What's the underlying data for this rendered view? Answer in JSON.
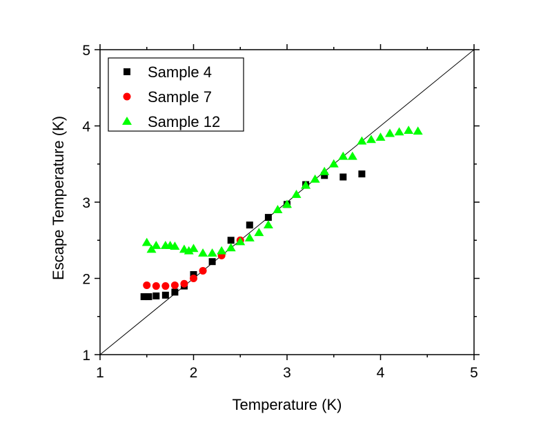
{
  "chart_data": {
    "type": "scatter",
    "title": "",
    "xlabel": "Temperature (K)",
    "ylabel": "Escape Temperature (K)",
    "xlim": [
      1,
      5
    ],
    "ylim": [
      1,
      5
    ],
    "xticks": [
      1,
      2,
      3,
      4,
      5
    ],
    "yticks": [
      1,
      2,
      3,
      4,
      5
    ],
    "x_tick_labels": [
      "1",
      "2",
      "3",
      "4",
      "5"
    ],
    "y_tick_labels": [
      "1",
      "2",
      "3",
      "4",
      "5"
    ],
    "grid": false,
    "legend_position": "top-left",
    "reference_line": {
      "label": "y = x",
      "points": [
        [
          1,
          1
        ],
        [
          5,
          5
        ]
      ],
      "color": "#000000"
    },
    "series": [
      {
        "name": "Sample 4",
        "marker": "square",
        "color": "#000000",
        "x": [
          1.47,
          1.52,
          1.6,
          1.7,
          1.8,
          1.9,
          2.0,
          2.2,
          2.4,
          2.6,
          2.8,
          3.0,
          3.2,
          3.4,
          3.6,
          3.8
        ],
        "y": [
          1.76,
          1.76,
          1.77,
          1.78,
          1.82,
          1.9,
          2.05,
          2.22,
          2.5,
          2.7,
          2.8,
          2.97,
          3.23,
          3.35,
          3.33,
          3.37
        ]
      },
      {
        "name": "Sample 7",
        "marker": "circle",
        "color": "#ff0000",
        "x": [
          1.5,
          1.6,
          1.7,
          1.8,
          1.9,
          2.0,
          2.1,
          2.3,
          2.5
        ],
        "y": [
          1.91,
          1.9,
          1.9,
          1.91,
          1.93,
          2.0,
          2.1,
          2.3,
          2.5
        ],
        "x_more_note": ""
      },
      {
        "name": "Sample 12",
        "marker": "triangle",
        "color": "#00ff00",
        "x": [
          1.5,
          1.55,
          1.6,
          1.7,
          1.75,
          1.8,
          1.9,
          1.95,
          2.0,
          2.1,
          2.2,
          2.3,
          2.4,
          2.5,
          2.6,
          2.7,
          2.8,
          2.9,
          3.0,
          3.1,
          3.2,
          3.3,
          3.4,
          3.5,
          3.6,
          3.7,
          3.8,
          3.9,
          4.0,
          4.1,
          4.2,
          4.3,
          4.4
        ],
        "y": [
          2.47,
          2.38,
          2.43,
          2.43,
          2.43,
          2.42,
          2.38,
          2.36,
          2.39,
          2.33,
          2.33,
          2.36,
          2.4,
          2.48,
          2.53,
          2.6,
          2.7,
          2.9,
          2.97,
          3.1,
          3.22,
          3.3,
          3.4,
          3.5,
          3.6,
          3.6,
          3.8,
          3.82,
          3.85,
          3.9,
          3.92,
          3.94,
          3.93
        ]
      }
    ]
  }
}
